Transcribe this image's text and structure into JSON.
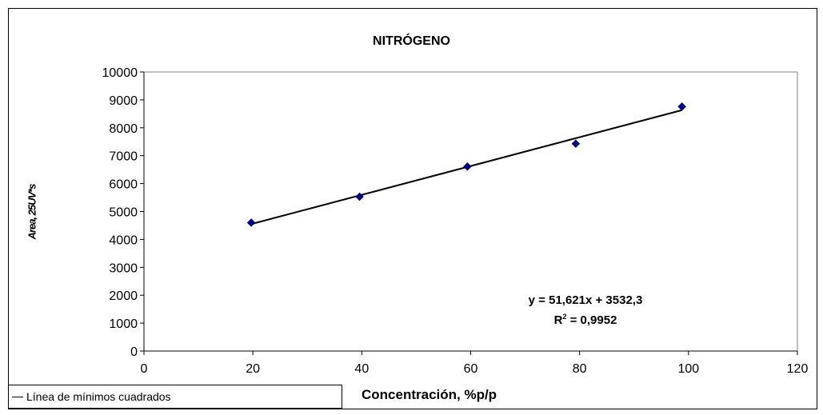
{
  "chart_data": {
    "type": "scatter",
    "title": "NITRÓGENO",
    "xlabel": "Concentración, %p/p",
    "ylabel": "Area, 25UV*s",
    "xlim": [
      0,
      120
    ],
    "ylim": [
      0,
      10000
    ],
    "x_ticks": [
      0,
      20,
      40,
      60,
      80,
      100,
      120
    ],
    "y_ticks": [
      0,
      1000,
      2000,
      3000,
      4000,
      5000,
      6000,
      7000,
      8000,
      9000,
      10000
    ],
    "series": [
      {
        "x": [
          19.7,
          39.6,
          59.4,
          79.3,
          98.8
        ],
        "y": [
          4600,
          5530,
          6610,
          7430,
          8760
        ],
        "marker": "diamond",
        "color": "#000080"
      }
    ],
    "trendline": {
      "name": "Línea de mínimos cuadrados",
      "slope": 51.621,
      "intercept": 3532.3,
      "x_range": [
        19.7,
        98.8
      ],
      "color": "#000000"
    },
    "annotation": {
      "equation": "y = 51,621x + 3532,3",
      "r2_prefix": "R",
      "r2_exp": "2",
      "r2_suffix": " = 0,9952"
    },
    "legend_position": "bottom-left",
    "grid": false
  }
}
